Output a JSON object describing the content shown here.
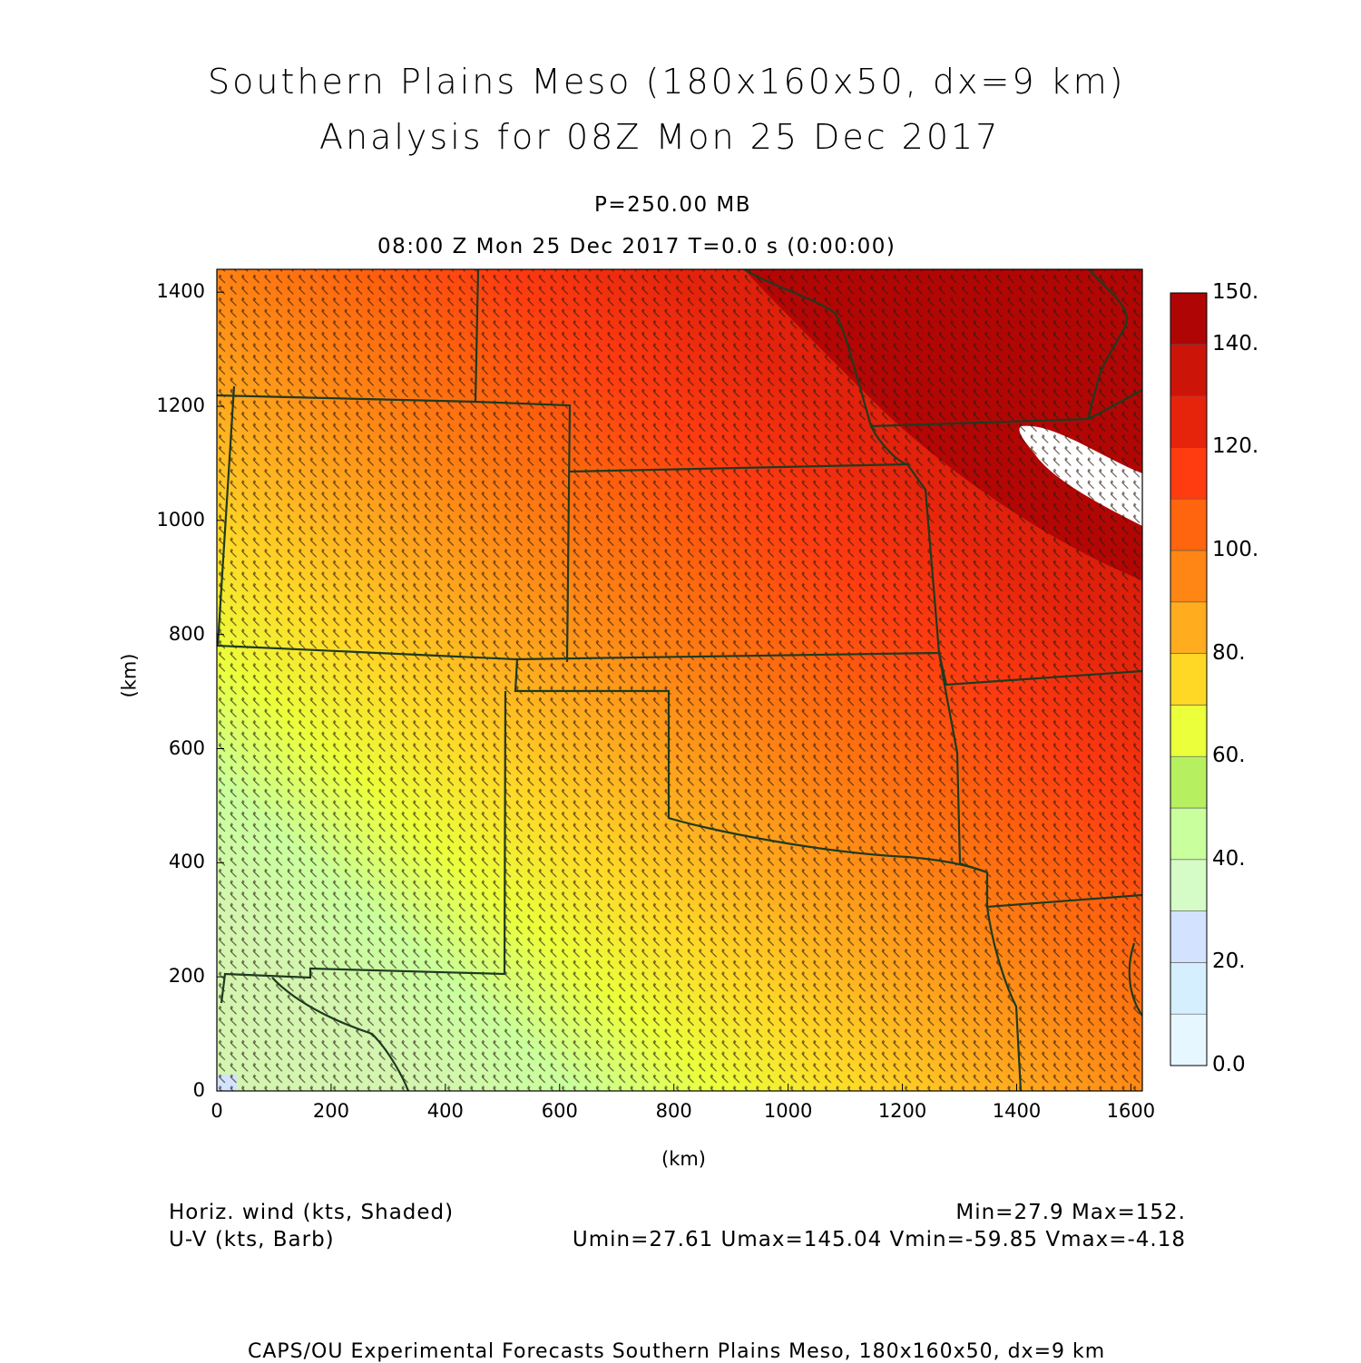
{
  "title_line1": "Southern Plains Meso (180x160x50, dx=9 km)",
  "title_line2": "Analysis for 08Z Mon 25 Dec 2017",
  "level": "P=250.00 MB",
  "time_line": "08:00 Z Mon 25 Dec 2017    T=0.0 s (0:00:00)",
  "x_axis": {
    "label": "(km)",
    "ticks": [
      "0",
      "200",
      "400",
      "600",
      "800",
      "1000",
      "1200",
      "1400",
      "1600"
    ]
  },
  "y_axis": {
    "label": "(km)",
    "ticks": [
      "0",
      "200",
      "400",
      "600",
      "800",
      "1000",
      "1200",
      "1400"
    ]
  },
  "colorbar": {
    "labels": [
      "0.0",
      "20.",
      "40.",
      "60.",
      "80.",
      "100.",
      "120.",
      "140.",
      "150."
    ],
    "colors": [
      "#e6f7ff",
      "#d5efff",
      "#d3e2ff",
      "#d5fbc6",
      "#c9ff9c",
      "#b6f060",
      "#ebff3a",
      "#ffd826",
      "#ffac1e",
      "#ff8614",
      "#ff640e",
      "#ff3c10",
      "#e6240c",
      "#cc1508",
      "#b00505"
    ]
  },
  "footer_left_1": "Horiz. wind (kts, Shaded)",
  "footer_left_2": "U-V (kts, Barb)",
  "footer_right_1": "Min=27.9  Max=152.",
  "footer_right_2": "Umin=27.61  Umax=145.04  Vmin=-59.85  Vmax=-4.18",
  "credit": "CAPS/OU Experimental Forecasts   Southern Plains Meso, 180x160x50, dx=9 km",
  "map_colors": {
    "border": "#1f3a1f"
  }
}
